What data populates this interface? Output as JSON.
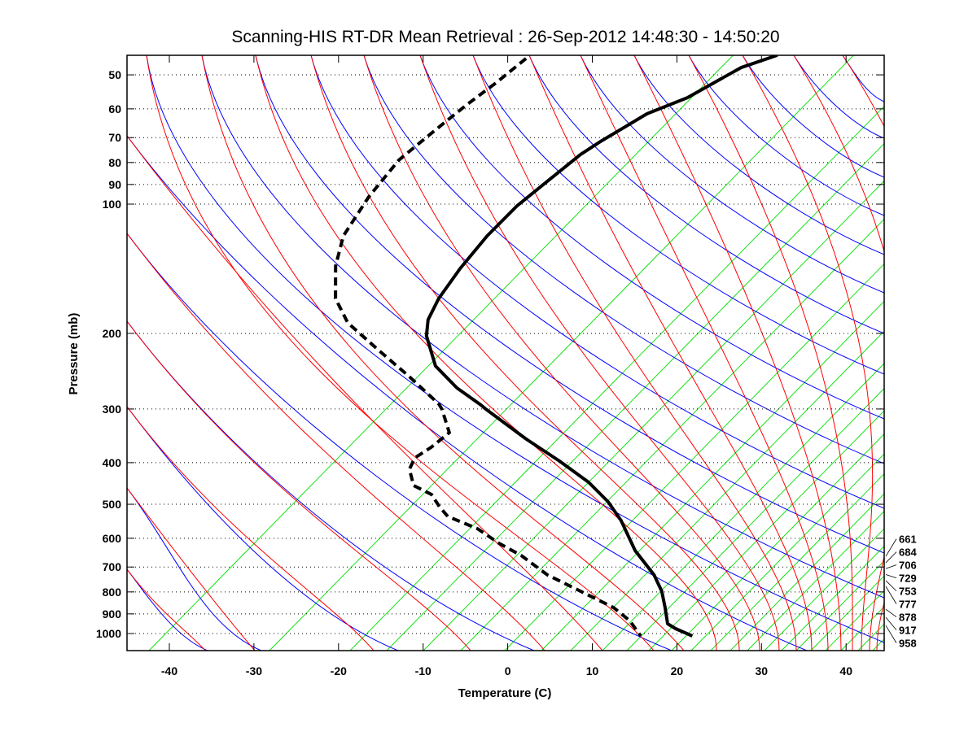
{
  "chart_data": {
    "type": "line",
    "chart_kind": "skew-T log-p thermodynamic diagram",
    "title": "Scanning-HIS RT-DR Mean Retrieval : 26-Sep-2012 14:48:30 - 14:50:20",
    "xlabel": "Temperature (C)",
    "ylabel": "Pressure (mb)",
    "xlim": [
      -45,
      45
    ],
    "ylim_pressure": [
      1100,
      45
    ],
    "y_scale": "log",
    "x_ticks": [
      -40,
      -30,
      -20,
      -10,
      0,
      10,
      20,
      30,
      40
    ],
    "x_tick_labels": [
      "-40",
      "-30",
      "-20",
      "-10",
      "0",
      "10",
      "20",
      "30",
      "40"
    ],
    "y_ticks": [
      50,
      60,
      70,
      80,
      90,
      100,
      200,
      300,
      400,
      500,
      600,
      700,
      800,
      900,
      1000
    ],
    "y_tick_labels": [
      "50",
      "60",
      "70",
      "80",
      "90",
      "100",
      "200",
      "300",
      "400",
      "500",
      "600",
      "700",
      "800",
      "900",
      "1000"
    ],
    "grid": "dotted horizontal lines at pressure ticks",
    "background_lines": {
      "dry_adiabats_color": "#ff0000",
      "moist_adiabats_color": "#0000ff",
      "mixing_ratio_color": "#00e000"
    },
    "series": [
      {
        "name": "Temperature",
        "style": "solid",
        "color": "#000000",
        "points": [
          {
            "p": 45.0,
            "t": -57.1
          },
          {
            "p": 48.1,
            "t": -59.5
          },
          {
            "p": 56.5,
            "t": -61.2
          },
          {
            "p": 61.6,
            "t": -63.5
          },
          {
            "p": 71.2,
            "t": -64.7
          },
          {
            "p": 76.6,
            "t": -65.1
          },
          {
            "p": 87.4,
            "t": -64.9
          },
          {
            "p": 100.9,
            "t": -64.7
          },
          {
            "p": 118.6,
            "t": -63.6
          },
          {
            "p": 141.1,
            "t": -61.8
          },
          {
            "p": 165.9,
            "t": -59.7
          },
          {
            "p": 185.8,
            "t": -57.7
          },
          {
            "p": 202.7,
            "t": -55.4
          },
          {
            "p": 238.2,
            "t": -49.7
          },
          {
            "p": 267.9,
            "t": -43.8
          },
          {
            "p": 293.7,
            "t": -38.3
          },
          {
            "p": 300.2,
            "t": -37.1
          },
          {
            "p": 352.7,
            "t": -27.7
          },
          {
            "p": 396.7,
            "t": -20.4
          },
          {
            "p": 444.4,
            "t": -13.7
          },
          {
            "p": 493.4,
            "t": -8.4
          },
          {
            "p": 545.4,
            "t": -4.0
          },
          {
            "p": 641.0,
            "t": 2.3
          },
          {
            "p": 730.6,
            "t": 8.3
          },
          {
            "p": 797.0,
            "t": 11.7
          },
          {
            "p": 869.8,
            "t": 14.6
          },
          {
            "p": 949.1,
            "t": 17.4
          },
          {
            "p": 974.2,
            "t": 19.1
          },
          {
            "p": 1013.0,
            "t": 22.2
          }
        ]
      },
      {
        "name": "Dewpoint",
        "style": "dashed",
        "color": "#000000",
        "points": [
          {
            "p": 45.8,
            "t": -86.3
          },
          {
            "p": 52.2,
            "t": -86.1
          },
          {
            "p": 59.0,
            "t": -86.2
          },
          {
            "p": 68.1,
            "t": -86.0
          },
          {
            "p": 79.0,
            "t": -85.7
          },
          {
            "p": 96.2,
            "t": -83.6
          },
          {
            "p": 118.6,
            "t": -80.6
          },
          {
            "p": 139.3,
            "t": -76.9
          },
          {
            "p": 165.9,
            "t": -71.9
          },
          {
            "p": 189.0,
            "t": -66.7
          },
          {
            "p": 218.3,
            "t": -59.0
          },
          {
            "p": 252.0,
            "t": -51.2
          },
          {
            "p": 292.4,
            "t": -43.4
          },
          {
            "p": 300.2,
            "t": -42.3
          },
          {
            "p": 340.6,
            "t": -37.8
          },
          {
            "p": 368.4,
            "t": -37.7
          },
          {
            "p": 389.9,
            "t": -38.0
          },
          {
            "p": 414.3,
            "t": -36.9
          },
          {
            "p": 452.2,
            "t": -33.9
          },
          {
            "p": 474.4,
            "t": -30.4
          },
          {
            "p": 506.4,
            "t": -27.6
          },
          {
            "p": 533.7,
            "t": -25.1
          },
          {
            "p": 569.9,
            "t": -19.7
          },
          {
            "p": 616.5,
            "t": -14.9
          },
          {
            "p": 658.1,
            "t": -10.4
          },
          {
            "p": 730.6,
            "t": -4.3
          },
          {
            "p": 797.0,
            "t": 2.1
          },
          {
            "p": 869.8,
            "t": 8.5
          },
          {
            "p": 932.6,
            "t": 12.4
          },
          {
            "p": 1013.0,
            "t": 16.1
          }
        ]
      }
    ],
    "right_side_labels": [
      "661",
      "684",
      "706",
      "729",
      "753",
      "777",
      "878",
      "917",
      "958"
    ]
  }
}
